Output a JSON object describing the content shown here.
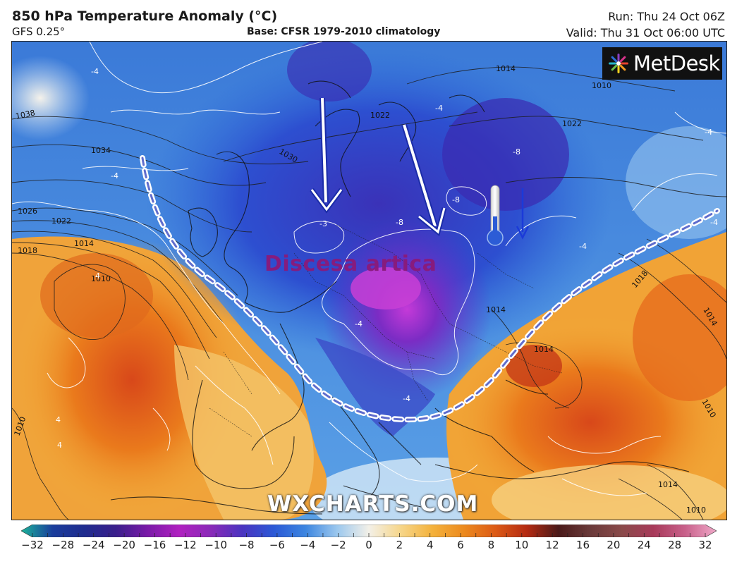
{
  "header": {
    "title": "850 hPa Temperature Anomaly (°C)",
    "subtitle": "GFS 0.25°",
    "base": "Base: CFSR 1979-2010 climatology",
    "run": "Run: Thu 24 Oct 06Z",
    "valid": "Valid: Thu 31 Oct 06:00 UTC"
  },
  "brand": {
    "logo_text": "MetDesk",
    "watermark": "WXCHARTS.COM"
  },
  "annotation": {
    "label": "Discesa artica"
  },
  "isobar_labels": [
    "1038",
    "1034",
    "1030",
    "1026",
    "1022",
    "1018",
    "1014",
    "1010",
    "1022",
    "1014",
    "1010",
    "1022",
    "1018",
    "1014",
    "1014",
    "1014",
    "1010",
    "1010",
    "1014",
    "1010"
  ],
  "anomaly_labels": [
    "-4",
    "-4",
    "-4",
    "-4",
    "-8",
    "-8",
    "-8",
    "-3",
    "-4",
    "-4",
    "4",
    "4",
    "4",
    "-4",
    "-4"
  ],
  "colorbar": {
    "ticks": [
      "−32",
      "−28",
      "−24",
      "−20",
      "−16",
      "−12",
      "−10",
      "−8",
      "−6",
      "−4",
      "−2",
      "0",
      "2",
      "4",
      "6",
      "8",
      "10",
      "12",
      "16",
      "20",
      "24",
      "28",
      "32"
    ],
    "colors": [
      "#1bb39a",
      "#1a3d9c",
      "#1f2c8f",
      "#3a1f8c",
      "#7a1aa8",
      "#b020c0",
      "#8a2ab8",
      "#4a34c0",
      "#2b59d6",
      "#3d86e0",
      "#9cc8ee",
      "#f3f0e8",
      "#f6d68a",
      "#f4b23c",
      "#ec8a1e",
      "#dc5a16",
      "#b42a12",
      "#4a1a1a",
      "#6a3a3a",
      "#8a4a4a",
      "#a83a5a",
      "#c8608a",
      "#f0a8c8"
    ]
  }
}
